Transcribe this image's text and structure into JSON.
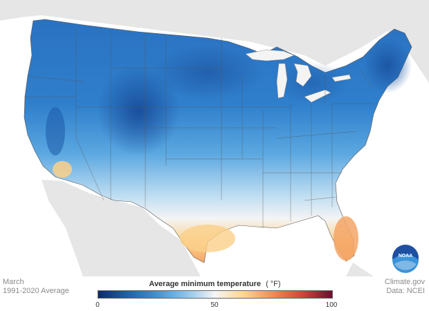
{
  "map": {
    "title": "Average minimum temperature",
    "unit": "(  °F)",
    "legend": {
      "ticks": [
        "0",
        "50",
        "100"
      ],
      "colors": [
        "#0d2a6b",
        "#1f5fb0",
        "#3b93d8",
        "#8cc3ea",
        "#f5f5f5",
        "#fcd58a",
        "#f38a4a",
        "#d0433b",
        "#6b0f2f"
      ]
    },
    "footer_left": {
      "period_label": "March",
      "normal_label": "1991-2020 Average"
    },
    "footer_right": {
      "source_site": "Climate.gov",
      "source_data": "Data: NCEI"
    },
    "logo_text": "NOAA",
    "region_colors": {
      "land_background": "#e6e6e6",
      "ocean": "#ffffff",
      "cold_deep": "#1d5aa8",
      "cold": "#2f7cc8",
      "cool": "#5aa7e0",
      "mild": "#a9d2ef",
      "neutral": "#f2f2f2",
      "warm": "#fbd08a",
      "warmer": "#f5a565"
    }
  }
}
